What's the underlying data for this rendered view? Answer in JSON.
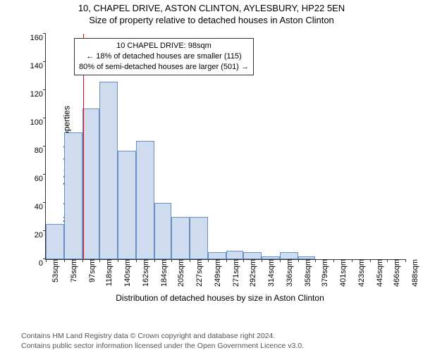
{
  "title": "10, CHAPEL DRIVE, ASTON CLINTON, AYLESBURY, HP22 5EN",
  "subtitle": "Size of property relative to detached houses in Aston Clinton",
  "chart": {
    "type": "histogram",
    "ylabel": "Number of detached properties",
    "xaxis_title": "Distribution of detached houses by size in Aston Clinton",
    "ylim": [
      0,
      160
    ],
    "ytick_step": 20,
    "xbins_sqm": [
      53,
      75,
      97,
      118,
      140,
      162,
      184,
      205,
      227,
      249,
      271,
      292,
      314,
      336,
      358,
      379,
      401,
      423,
      445,
      466,
      488
    ],
    "values": [
      25,
      90,
      107,
      126,
      77,
      84,
      40,
      30,
      30,
      5,
      6,
      5,
      2,
      5,
      2,
      0,
      0,
      0,
      0,
      0
    ],
    "bar_fill": "#cfdcef",
    "bar_border": "#6a8fbf",
    "background": "#ffffff",
    "axis_color": "#333333",
    "tick_fontsize": 11,
    "label_fontsize": 12,
    "marker": {
      "sqm": 98,
      "color": "#ff0000",
      "width": 1
    },
    "annotation": {
      "line1": "10 CHAPEL DRIVE: 98sqm",
      "line2": "← 18% of detached houses are smaller (115)",
      "line3": "80% of semi-detached houses are larger (501) →",
      "border": "#333333",
      "background": "#ffffff"
    }
  },
  "footer": {
    "line1": "Contains HM Land Registry data © Crown copyright and database right 2024.",
    "line2": "Contains public sector information licensed under the Open Government Licence v3.0."
  }
}
